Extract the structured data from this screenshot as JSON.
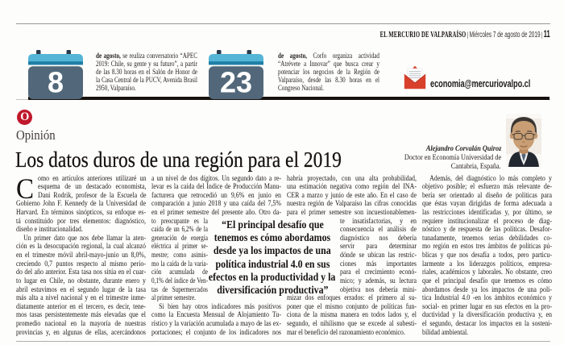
{
  "masthead": {
    "paper": "EL MERCURIO DE VALPARAÍSO",
    "separator": "|",
    "date": "Miércoles 7 de agosto de 2019",
    "page_number": "11"
  },
  "agenda": {
    "events": [
      {
        "day": "8",
        "lines": [
          {
            "b": "de agosto,",
            "t": " se realiza conversatorio “APEC"
          },
          {
            "t": "2019: Chile, su gente y su futuro”, a partir"
          },
          {
            "t": "de las 8.30 horas en el Salón de Honor de"
          },
          {
            "t": "la Casa Central de la PUCV, Avenida Brasil"
          },
          {
            "t": "2950, Valparaíso.",
            "c": "end"
          }
        ]
      },
      {
        "day": "23",
        "lines": [
          {
            "b": "de agosto,",
            "t": " Corfo organiza actividad"
          },
          {
            "t": "“Atrévete a Innovar” que busca crear y"
          },
          {
            "t": "potenciar los negocios de la Región de"
          },
          {
            "t": "Valparaíso, desde las 8.30 horas en el"
          },
          {
            "t": "Congreso Nacional.",
            "c": "end"
          }
        ]
      }
    ],
    "email": "economia@mercuriovalpo.cl"
  },
  "section": {
    "badge": "O",
    "label": "Opinión"
  },
  "article": {
    "headline": "Los datos duros de una región para el 2019",
    "author": {
      "name": "Alejandro Corvalán Quiroz",
      "title_line1": "Doctor en Economía Universidad de",
      "title_line2": "Cantabria, España."
    },
    "dropcap": "C",
    "columns": [
      {
        "lines": [
          {
            "t": "omo en artículos anteriores utilizaré un",
            "c": "dc"
          },
          {
            "t": "esquema de un destacado economista,",
            "c": "dc"
          },
          {
            "t": "Dani Rodrik, profesor de la Escuela de",
            "c": "dc"
          },
          {
            "t": "Gobierno John F. Kennedy de la Universidad de"
          },
          {
            "t": "Harvard. En términos sinópticos, su enfoque es-"
          },
          {
            "t": "tá constituido por tres elementos: diagnóstico,"
          },
          {
            "t": "diseño e institucionalidad.",
            "c": "end"
          },
          {
            "t": "Un primer dato que nos debe llamar la aten-",
            "c": "in"
          },
          {
            "t": "ción es la desocupación regional, la cual alcanzó"
          },
          {
            "t": "en el trimestre móvil abril-mayo-junio un 8,0%,"
          },
          {
            "t": "creciendo 0,7 puntos respecto al mismo perío-"
          },
          {
            "t": "do del año anterior. Esta tasa nos sitúa en el cuar-"
          },
          {
            "t": "to lugar en Chile, no obstante, durante enero y"
          },
          {
            "t": "abril estuvimos en el segundo lugar de la tasa"
          },
          {
            "t": "más alta a nivel nacional y en el trimestre inme-"
          },
          {
            "t": "diatamente anterior en el tercero, es decir, tene-"
          },
          {
            "t": "mos tasas persistentemente más elevadas que el"
          },
          {
            "t": "promedio nacional en la mayoría de nuestras"
          },
          {
            "t": "provincias y, en algunas de ellas, acercándonos"
          }
        ]
      },
      {
        "lines": [
          {
            "t": "a un nivel de dos dígitos. Un segundo dato a re-"
          },
          {
            "t": "levar es la caída del Índice de Producción Manu-"
          },
          {
            "t": "facturera que retrocedió un 9,6% en junio en"
          },
          {
            "t": "comparación a junio 2018 y una caída del 7,5%"
          },
          {
            "t": "en el primer semestre del presente año. Otro da-"
          },
          {
            "t": "to preocupante es la",
            "c": "n2"
          },
          {
            "t": "caída de un 6,2% de la",
            "c": "n2"
          },
          {
            "t": "generación de energía",
            "c": "n2"
          },
          {
            "t": "eléctrica al primer se-",
            "c": "n2"
          },
          {
            "t": "mestre; como asimis-",
            "c": "n2"
          },
          {
            "t": "mo la caída de la varia-",
            "c": "n2"
          },
          {
            "t": "ción acumulada de",
            "c": "n2"
          },
          {
            "t": "0,1% del índice de Ven-",
            "c": "n2"
          },
          {
            "t": "tas de Supermercados",
            "c": "n2"
          },
          {
            "t": "al primer semestre.",
            "c": "n2 end"
          },
          {
            "t": "Si bien hay otros indicadores más positivos",
            "c": "in"
          },
          {
            "t": "como la Encuesta Mensual de Alojamiento Tu-"
          },
          {
            "t": "rístico y la variación acumulada a mayo de las ex-"
          },
          {
            "t": "portaciones; el conjunto de los indicadores nos"
          }
        ]
      },
      {
        "lines": [
          {
            "t": "habría proyectado, con una alta probabilidad,"
          },
          {
            "t": "una estimación negativa como región del INA-"
          },
          {
            "t": "CER a marzo y junio de este año. En el caso de"
          },
          {
            "t": "nuestra región de Valparaíso las cifras conocidas"
          },
          {
            "t": "para el primer semestre son incuestionablemen-"
          },
          {
            "t": "te insatisfactorias, y en",
            "c": "n3"
          },
          {
            "t": "consecuencia el análisis de",
            "c": "n3"
          },
          {
            "t": "diagnóstico nos debería",
            "c": "n3"
          },
          {
            "t": "servir para determinar",
            "c": "n3"
          },
          {
            "t": "dónde se ubican las restric-",
            "c": "n3"
          },
          {
            "t": "ciones más importantes",
            "c": "n3"
          },
          {
            "t": "para el crecimiento econó-",
            "c": "n3"
          },
          {
            "t": "mico; y además, su lectura",
            "c": "n3"
          },
          {
            "t": "objetiva nos debería mini-",
            "c": "n3"
          },
          {
            "t": "mizar dos enfoques errados: el primero al su-"
          },
          {
            "t": "poner que el mismo conjunto de políticas fun-"
          },
          {
            "t": "ciona de la misma manera en todos lados y, el"
          },
          {
            "t": "segundo, el nihilismo que se excede al subesti-"
          },
          {
            "t": "mar el beneficio del razonamiento económico.",
            "c": "end"
          }
        ]
      },
      {
        "lines": [
          {
            "t": "Además, del diagnóstico lo más completo y",
            "c": "in"
          },
          {
            "t": "objetivo posible; el esfuerzo más relevante de-"
          },
          {
            "t": "bería ser orientado al diseño de políticas para"
          },
          {
            "t": "que éstas vayan dirigidas de forma adecuada a"
          },
          {
            "t": "las restricciones identificadas y, por último, se"
          },
          {
            "t": "requiere institucionalizar el proceso de diag-"
          },
          {
            "t": "nóstico y de respuesta de las políticas. Desafor-"
          },
          {
            "t": "tunadamente, tenemos serias debilidades co-"
          },
          {
            "t": "mo región en estos tres ámbitos de políticas pú-"
          },
          {
            "t": "blicas y que nos desafía a todos, pero particu-"
          },
          {
            "t": "larmente a los liderazgos políticos, empresa-"
          },
          {
            "t": "riales, académicos y laborales. No obstante, creo"
          },
          {
            "t": "que el principal desafío que tenemos es cómo"
          },
          {
            "t": "abordamos desde ya los impactos de una polí-"
          },
          {
            "t": "tica Industrial 4.0 -en los ámbitos económico y"
          },
          {
            "t": "social- en primer lugar en sus efectos en la pro-"
          },
          {
            "t": "ductividad y la diversificación productiva y, en"
          },
          {
            "t": "el segundo, destacar los impactos en la sosteni-"
          },
          {
            "t": "bilidad ambiental.",
            "c": "end"
          }
        ]
      }
    ],
    "pullquote": {
      "lines": [
        "“El principal desafío que",
        "tenemos es cómo abordamos",
        "desde ya los impactos de una",
        "política industrial 4.0 en sus",
        "efectos en la productividad y la",
        "diversificación productiva”"
      ]
    }
  },
  "colors": {
    "accent_red": "#c0182c",
    "envelope_red": "#d8402c",
    "calendar_body": "#52687a",
    "calendar_header": "#55b5d6",
    "calendar_stripe": "#1f7fa5",
    "calendar_pin": "#2b3b4b",
    "bar_black": "#17120e"
  }
}
